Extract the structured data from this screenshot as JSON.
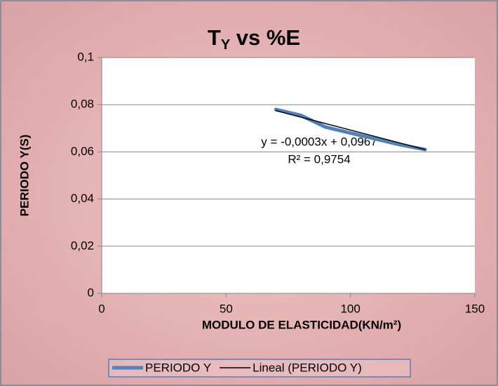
{
  "chart_data": {
    "type": "line",
    "title": [
      "T",
      "Y",
      " vs %E"
    ],
    "x_label": "MODULO DE ELASTICIDAD(KN/m²)",
    "y_label": "PERIODO Y(S)",
    "x": [
      70,
      80,
      90,
      100,
      110,
      120,
      130
    ],
    "series": [
      {
        "name": "PERIODO Y",
        "color": "#4f81bd",
        "values": [
          0.078,
          0.0755,
          0.0705,
          0.068,
          0.0655,
          0.063,
          0.061
        ]
      },
      {
        "name": "Lineal (PERIODO Y)",
        "color": "#000000",
        "x": [
          70,
          130
        ],
        "values": [
          0.0775,
          0.061
        ]
      }
    ],
    "annotations": [
      "y = -0,0003x + 0,0967",
      "R² = 0,9754"
    ],
    "xlim": [
      0,
      150
    ],
    "xticks": [
      0,
      50,
      100,
      150
    ],
    "ylim": [
      0,
      0.1
    ],
    "yticks": [
      0,
      {
        "value": 0.02,
        "label": "0,02"
      },
      {
        "value": 0.04,
        "label": "0,04"
      },
      {
        "value": 0.06,
        "label": "0,06"
      },
      {
        "value": 0.08,
        "label": "0,08"
      },
      {
        "value": 0.1,
        "label": "0,1"
      }
    ],
    "grid": true,
    "legend": "bottom"
  }
}
